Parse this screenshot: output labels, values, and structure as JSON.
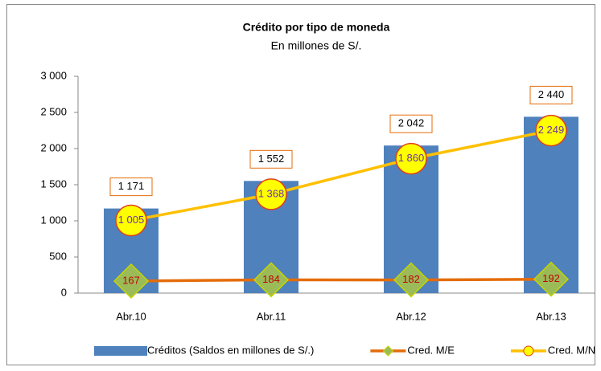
{
  "chart_data": {
    "type": "bar",
    "title": "Crédito por tipo de moneda",
    "subtitle": "En millones de S/.",
    "categories": [
      "Abr.10",
      "Abr.11",
      "Abr.12",
      "Abr.13"
    ],
    "ylim": [
      0,
      3000
    ],
    "yticks": [
      0,
      500,
      {
        "value": 1000,
        "label": "1 000"
      },
      {
        "value": 1500,
        "label": "1 500"
      },
      {
        "value": 2000,
        "label": "2 000"
      },
      {
        "value": 2500,
        "label": "2 500"
      },
      {
        "value": 3000,
        "label": "3 000"
      }
    ],
    "legend": "bottom",
    "series": [
      {
        "name": "Créditos (Saldos en millones de S/.)",
        "type": "bar",
        "color": "#4f81bd",
        "values": [
          1171,
          1552,
          2042,
          2440
        ],
        "value_labels": [
          "1 171",
          "1 552",
          "2 042",
          "2 440"
        ]
      },
      {
        "name": "Cred. M/E",
        "type": "line",
        "marker": "diamond",
        "color": "#e46c0a",
        "values": [
          167,
          184,
          182,
          192
        ]
      },
      {
        "name": "Cred. M/N",
        "type": "line",
        "marker": "circle",
        "color": "#ffc000",
        "values": [
          1005,
          1368,
          1860,
          2249
        ],
        "value_labels": [
          "1 005",
          "1 368",
          "1 860",
          "2 249"
        ]
      }
    ]
  }
}
